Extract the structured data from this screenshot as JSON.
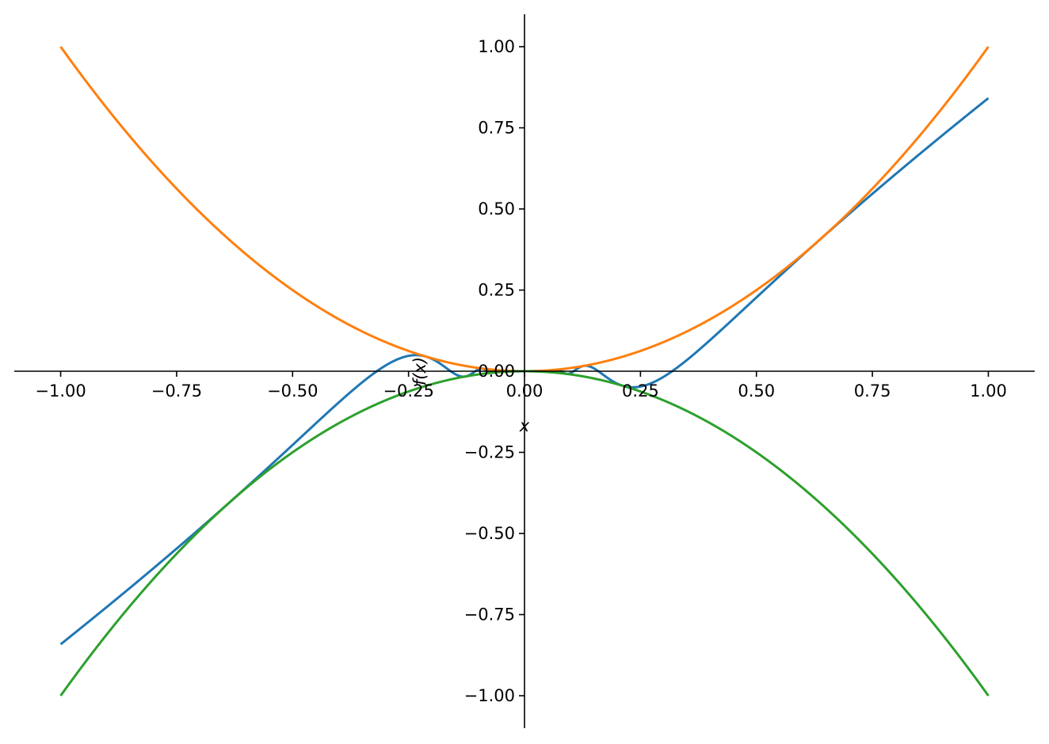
{
  "chart_data": {
    "type": "line",
    "title": "",
    "xlabel": "x",
    "ylabel": "f(x)",
    "xlim": [
      -1.1,
      1.1
    ],
    "ylim": [
      -1.1,
      1.1
    ],
    "grid": false,
    "spines": "centered",
    "x_ticks": [
      -1.0,
      -0.75,
      -0.5,
      -0.25,
      0.0,
      0.25,
      0.5,
      0.75,
      1.0
    ],
    "x_tick_labels": [
      "−1.00",
      "−0.75",
      "−0.50",
      "−0.25",
      "0.00",
      "0.25",
      "0.50",
      "0.75",
      "1.00"
    ],
    "y_ticks": [
      -1.0,
      -0.75,
      -0.5,
      -0.25,
      0.0,
      0.25,
      0.5,
      0.75,
      1.0
    ],
    "y_tick_labels": [
      "−1.00",
      "−0.75",
      "−0.50",
      "−0.25",
      "0.00",
      "0.25",
      "0.50",
      "0.75",
      "1.00"
    ],
    "series": [
      {
        "expr": "x^2 sin(1/x)",
        "domain": [
          -1,
          1
        ],
        "color": "#1f77b4"
      },
      {
        "expr": "x^2",
        "domain": [
          -1,
          1
        ],
        "color": "#ff7f0e"
      },
      {
        "expr": "-x^2",
        "domain": [
          -1,
          1
        ],
        "color": "#2ca02c"
      }
    ]
  }
}
